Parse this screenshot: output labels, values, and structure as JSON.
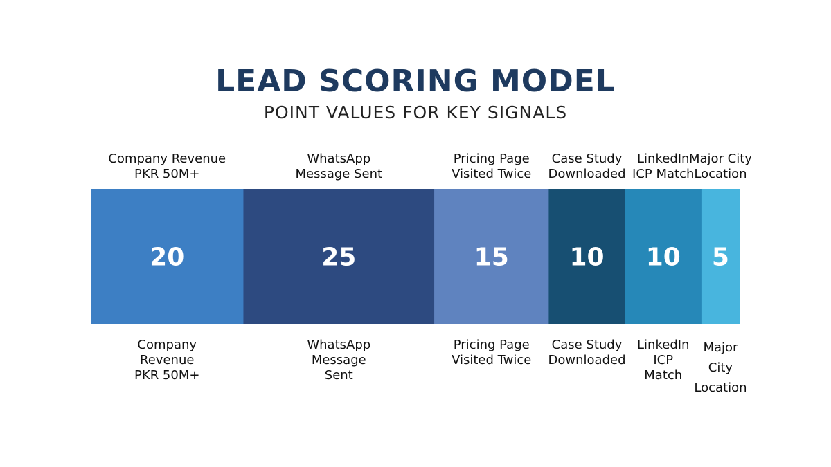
{
  "chart_data": {
    "type": "bar",
    "orientation": "horizontal-stacked",
    "title": "LEAD SCORING MODEL",
    "subtitle": "POINT VALUES FOR KEY SIGNALS",
    "categories": [
      "Company Revenue PKR 50M+",
      "WhatsApp Message Sent",
      "Pricing Page Visited Twice",
      "Case Study Downloaded",
      "LinkedIn ICP Match",
      "Major City Location"
    ],
    "values": [
      20,
      25,
      15,
      10,
      10,
      5
    ],
    "value_labels": [
      "20",
      "25",
      "15",
      "10",
      "10",
      "5"
    ],
    "top_labels": [
      [
        "Company Revenue",
        "PKR 50M+"
      ],
      [
        "WhatsApp",
        "Message Sent"
      ],
      [
        "Pricing Page",
        "Visited Twice"
      ],
      [
        "Case Study",
        "Downloaded"
      ],
      [
        "LinkedIn",
        "ICP Match"
      ],
      [
        "Major City",
        "Location"
      ]
    ],
    "bottom_labels": [
      [
        "Company",
        "Revenue",
        "PKR 50M+"
      ],
      [
        "WhatsApp",
        "Message",
        "Sent"
      ],
      [
        "Pricing Page",
        "Visited Twice"
      ],
      [
        "Case Study",
        "Downloaded"
      ],
      [
        "LinkedIn",
        "ICP",
        "Match"
      ],
      [
        "Major",
        "City",
        "Location"
      ]
    ],
    "colors": [
      "#3d7fc4",
      "#2d4a80",
      "#5f83bf",
      "#174f72",
      "#2688b8",
      "#48b5de"
    ],
    "value_label_color": "#ffffff",
    "legend": "none",
    "grid": false
  }
}
